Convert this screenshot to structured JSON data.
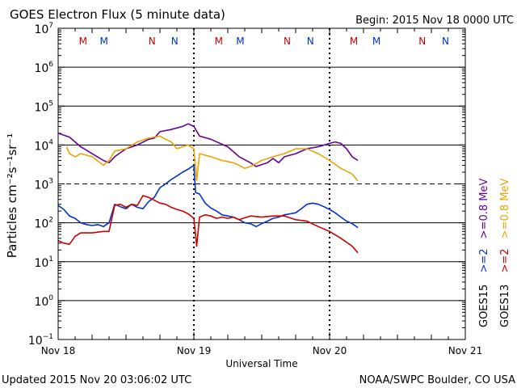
{
  "chart_data": {
    "type": "line",
    "title": "GOES Electron Flux (5 minute data)",
    "begin_label": "Begin: 2015 Nov 18 0000 UTC",
    "xlabel": "Universal Time",
    "ylabel": "Particles cm⁻²s⁻¹sr⁻¹",
    "y_scale": "log",
    "ylim_exponent": [
      -1,
      7
    ],
    "ytick_exponents": [
      7,
      6,
      5,
      4,
      3,
      2,
      1,
      0,
      -1
    ],
    "xlim_hours": [
      0,
      72
    ],
    "xticks": [
      {
        "hour": 0,
        "label": "Nov 18"
      },
      {
        "hour": 24,
        "label": "Nov 19"
      },
      {
        "hour": 48,
        "label": "Nov 20"
      },
      {
        "hour": 72,
        "label": "Nov 21"
      }
    ],
    "threshold_exponent": 3,
    "midnight_markers_hours": [
      24,
      48
    ],
    "satellite_markers": [
      {
        "hour": 4.4,
        "letter": "M",
        "color": "#cc0000"
      },
      {
        "hour": 8.1,
        "letter": "M",
        "color": "#0033cc"
      },
      {
        "hour": 16.6,
        "letter": "N",
        "color": "#cc0000"
      },
      {
        "hour": 20.6,
        "letter": "N",
        "color": "#0033cc"
      },
      {
        "hour": 28.4,
        "letter": "M",
        "color": "#cc0000"
      },
      {
        "hour": 32.2,
        "letter": "M",
        "color": "#0033cc"
      },
      {
        "hour": 40.5,
        "letter": "N",
        "color": "#cc0000"
      },
      {
        "hour": 44.6,
        "letter": "N",
        "color": "#0033cc"
      },
      {
        "hour": 52.3,
        "letter": "M",
        "color": "#cc0000"
      },
      {
        "hour": 56.3,
        "letter": "M",
        "color": "#0033cc"
      },
      {
        "hour": 64.4,
        "letter": "N",
        "color": "#cc0000"
      },
      {
        "hour": 68.5,
        "letter": "N",
        "color": "#0033cc"
      }
    ],
    "series": [
      {
        "name": ">=0.8 MeV GOES15",
        "color": "#660099",
        "points": [
          [
            0,
            20000
          ],
          [
            2,
            16000
          ],
          [
            4,
            9000
          ],
          [
            6,
            6000
          ],
          [
            8,
            4000
          ],
          [
            9,
            3500
          ],
          [
            10,
            5000
          ],
          [
            12,
            8000
          ],
          [
            14,
            10000
          ],
          [
            16,
            14000
          ],
          [
            17,
            15000
          ],
          [
            18,
            22000
          ],
          [
            20,
            25000
          ],
          [
            22,
            30000
          ],
          [
            23,
            35000
          ],
          [
            24,
            30000
          ],
          [
            25,
            17000
          ],
          [
            27,
            14000
          ],
          [
            30,
            9000
          ],
          [
            32,
            5000
          ],
          [
            34,
            3500
          ],
          [
            35,
            2800
          ],
          [
            37,
            3500
          ],
          [
            38,
            4500
          ],
          [
            39,
            3500
          ],
          [
            40,
            5000
          ],
          [
            42,
            6000
          ],
          [
            44,
            8000
          ],
          [
            46,
            9000
          ],
          [
            48,
            11000
          ],
          [
            49,
            12000
          ],
          [
            50,
            11000
          ],
          [
            51,
            8000
          ],
          [
            52,
            5000
          ],
          [
            53,
            4000
          ]
        ]
      },
      {
        "name": ">=0.8 MeV GOES13",
        "color": "#e8a400",
        "points": [
          [
            1.5,
            9000
          ],
          [
            2,
            6000
          ],
          [
            3,
            5000
          ],
          [
            4,
            6000
          ],
          [
            6,
            5000
          ],
          [
            8,
            3000
          ],
          [
            9,
            4000
          ],
          [
            10,
            7000
          ],
          [
            12,
            8000
          ],
          [
            14,
            12000
          ],
          [
            16,
            15000
          ],
          [
            18,
            17000
          ],
          [
            19,
            14000
          ],
          [
            20,
            12000
          ],
          [
            21,
            8000
          ],
          [
            22,
            9000
          ],
          [
            23,
            10000
          ],
          [
            24,
            8000
          ],
          [
            24.5,
            1200
          ],
          [
            25,
            6000
          ],
          [
            27,
            5000
          ],
          [
            29,
            4000
          ],
          [
            31,
            3500
          ],
          [
            32,
            3000
          ],
          [
            33,
            2500
          ],
          [
            34,
            2800
          ],
          [
            36,
            4000
          ],
          [
            38,
            5000
          ],
          [
            40,
            6000
          ],
          [
            42,
            8000
          ],
          [
            44,
            8000
          ],
          [
            46,
            6000
          ],
          [
            48,
            4000
          ],
          [
            50,
            2500
          ],
          [
            52,
            1800
          ],
          [
            53,
            1200
          ]
        ]
      },
      {
        "name": ">=2 MeV GOES15",
        "color": "#0033cc",
        "points": [
          [
            0,
            280
          ],
          [
            1,
            220
          ],
          [
            2,
            150
          ],
          [
            3,
            130
          ],
          [
            4,
            100
          ],
          [
            5,
            90
          ],
          [
            6,
            85
          ],
          [
            7,
            90
          ],
          [
            8,
            80
          ],
          [
            9,
            100
          ],
          [
            10,
            300
          ],
          [
            11,
            260
          ],
          [
            12,
            230
          ],
          [
            13,
            300
          ],
          [
            14,
            250
          ],
          [
            15,
            230
          ],
          [
            16,
            350
          ],
          [
            17,
            450
          ],
          [
            18,
            800
          ],
          [
            19,
            1000
          ],
          [
            20,
            1300
          ],
          [
            21,
            1600
          ],
          [
            22,
            2000
          ],
          [
            23,
            2400
          ],
          [
            24,
            3000
          ],
          [
            24.3,
            600
          ],
          [
            25,
            550
          ],
          [
            26,
            320
          ],
          [
            27,
            240
          ],
          [
            28,
            200
          ],
          [
            29,
            160
          ],
          [
            30,
            150
          ],
          [
            31,
            140
          ],
          [
            32,
            120
          ],
          [
            33,
            100
          ],
          [
            34,
            95
          ],
          [
            35,
            80
          ],
          [
            36,
            95
          ],
          [
            37,
            110
          ],
          [
            38,
            130
          ],
          [
            39,
            140
          ],
          [
            40,
            160
          ],
          [
            41,
            170
          ],
          [
            42,
            180
          ],
          [
            43,
            230
          ],
          [
            44,
            300
          ],
          [
            45,
            320
          ],
          [
            46,
            300
          ],
          [
            47,
            260
          ],
          [
            48,
            220
          ],
          [
            49,
            180
          ],
          [
            50,
            140
          ],
          [
            51,
            110
          ],
          [
            52,
            95
          ],
          [
            53,
            75
          ]
        ]
      },
      {
        "name": ">=2 MeV GOES13",
        "color": "#cc0000",
        "points": [
          [
            0,
            35
          ],
          [
            1,
            30
          ],
          [
            2,
            28
          ],
          [
            3,
            45
          ],
          [
            4,
            55
          ],
          [
            6,
            55
          ],
          [
            8,
            60
          ],
          [
            9,
            60
          ],
          [
            10,
            280
          ],
          [
            11,
            300
          ],
          [
            12,
            250
          ],
          [
            13,
            300
          ],
          [
            14,
            280
          ],
          [
            15,
            500
          ],
          [
            16,
            450
          ],
          [
            17,
            380
          ],
          [
            18,
            320
          ],
          [
            19,
            300
          ],
          [
            20,
            250
          ],
          [
            21,
            220
          ],
          [
            22,
            200
          ],
          [
            23,
            170
          ],
          [
            24,
            130
          ],
          [
            24.5,
            25
          ],
          [
            25,
            140
          ],
          [
            26,
            160
          ],
          [
            27,
            150
          ],
          [
            28,
            130
          ],
          [
            29,
            140
          ],
          [
            30,
            130
          ],
          [
            31,
            140
          ],
          [
            32,
            120
          ],
          [
            34,
            150
          ],
          [
            36,
            140
          ],
          [
            38,
            150
          ],
          [
            40,
            150
          ],
          [
            42,
            120
          ],
          [
            44,
            110
          ],
          [
            46,
            80
          ],
          [
            48,
            60
          ],
          [
            50,
            40
          ],
          [
            52,
            25
          ],
          [
            53,
            17
          ]
        ]
      }
    ],
    "right_legend": [
      {
        "text": "GOES15",
        "color": "#000000"
      },
      {
        "text": ">=2",
        "color": "#0033cc"
      },
      {
        "text": ">=0.8 MeV",
        "color": "#660099"
      },
      {
        "text": "GOES13",
        "color": "#000000"
      },
      {
        "text": ">=2",
        "color": "#cc0000"
      },
      {
        "text": ">=0.8 MeV",
        "color": "#e8a400"
      }
    ]
  },
  "footer": {
    "updated": "Updated 2015 Nov 20 03:06:02 UTC",
    "credit": "NOAA/SWPC Boulder, CO USA"
  }
}
